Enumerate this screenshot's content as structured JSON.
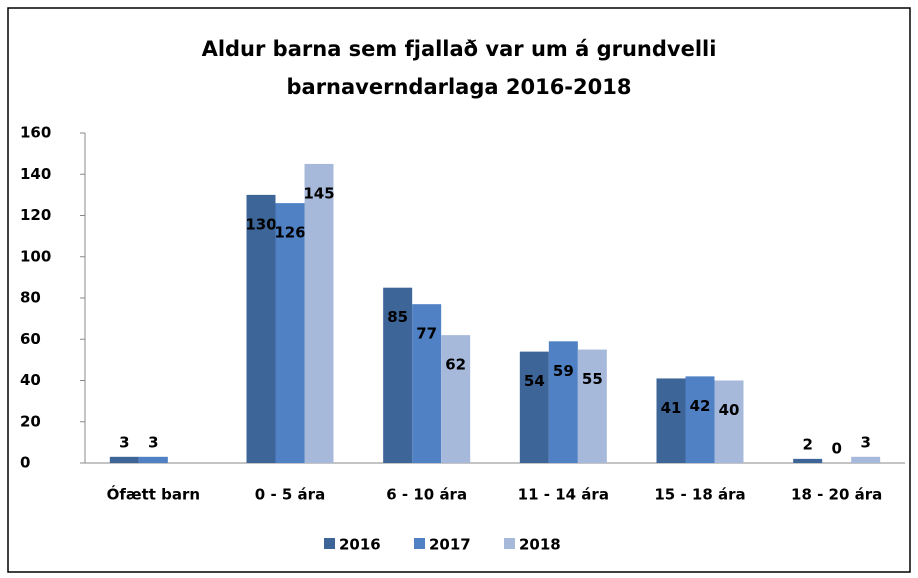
{
  "chart_data": {
    "type": "bar",
    "title": [
      "Aldur barna sem fjallað var um á grundvelli",
      "barnaverndarlaga 2016-2018"
    ],
    "categories": [
      "Ófætt barn",
      "0 - 5 ára",
      "6 - 10 ára",
      "11 - 14 ára",
      "15 - 18 ára",
      "18 - 20 ára"
    ],
    "series": [
      {
        "name": "2016",
        "color": "#3e6598",
        "values": [
          3,
          130,
          85,
          54,
          41,
          2
        ]
      },
      {
        "name": "2017",
        "color": "#4f81c4",
        "values": [
          3,
          126,
          77,
          59,
          42,
          0
        ]
      },
      {
        "name": "2018",
        "color": "#a6b9db",
        "values": [
          null,
          145,
          62,
          55,
          40,
          3
        ]
      }
    ],
    "ylim": [
      0,
      160
    ],
    "yticks": [
      0,
      20,
      40,
      60,
      80,
      100,
      120,
      140,
      160
    ],
    "grid": false,
    "legend": "bottom"
  }
}
